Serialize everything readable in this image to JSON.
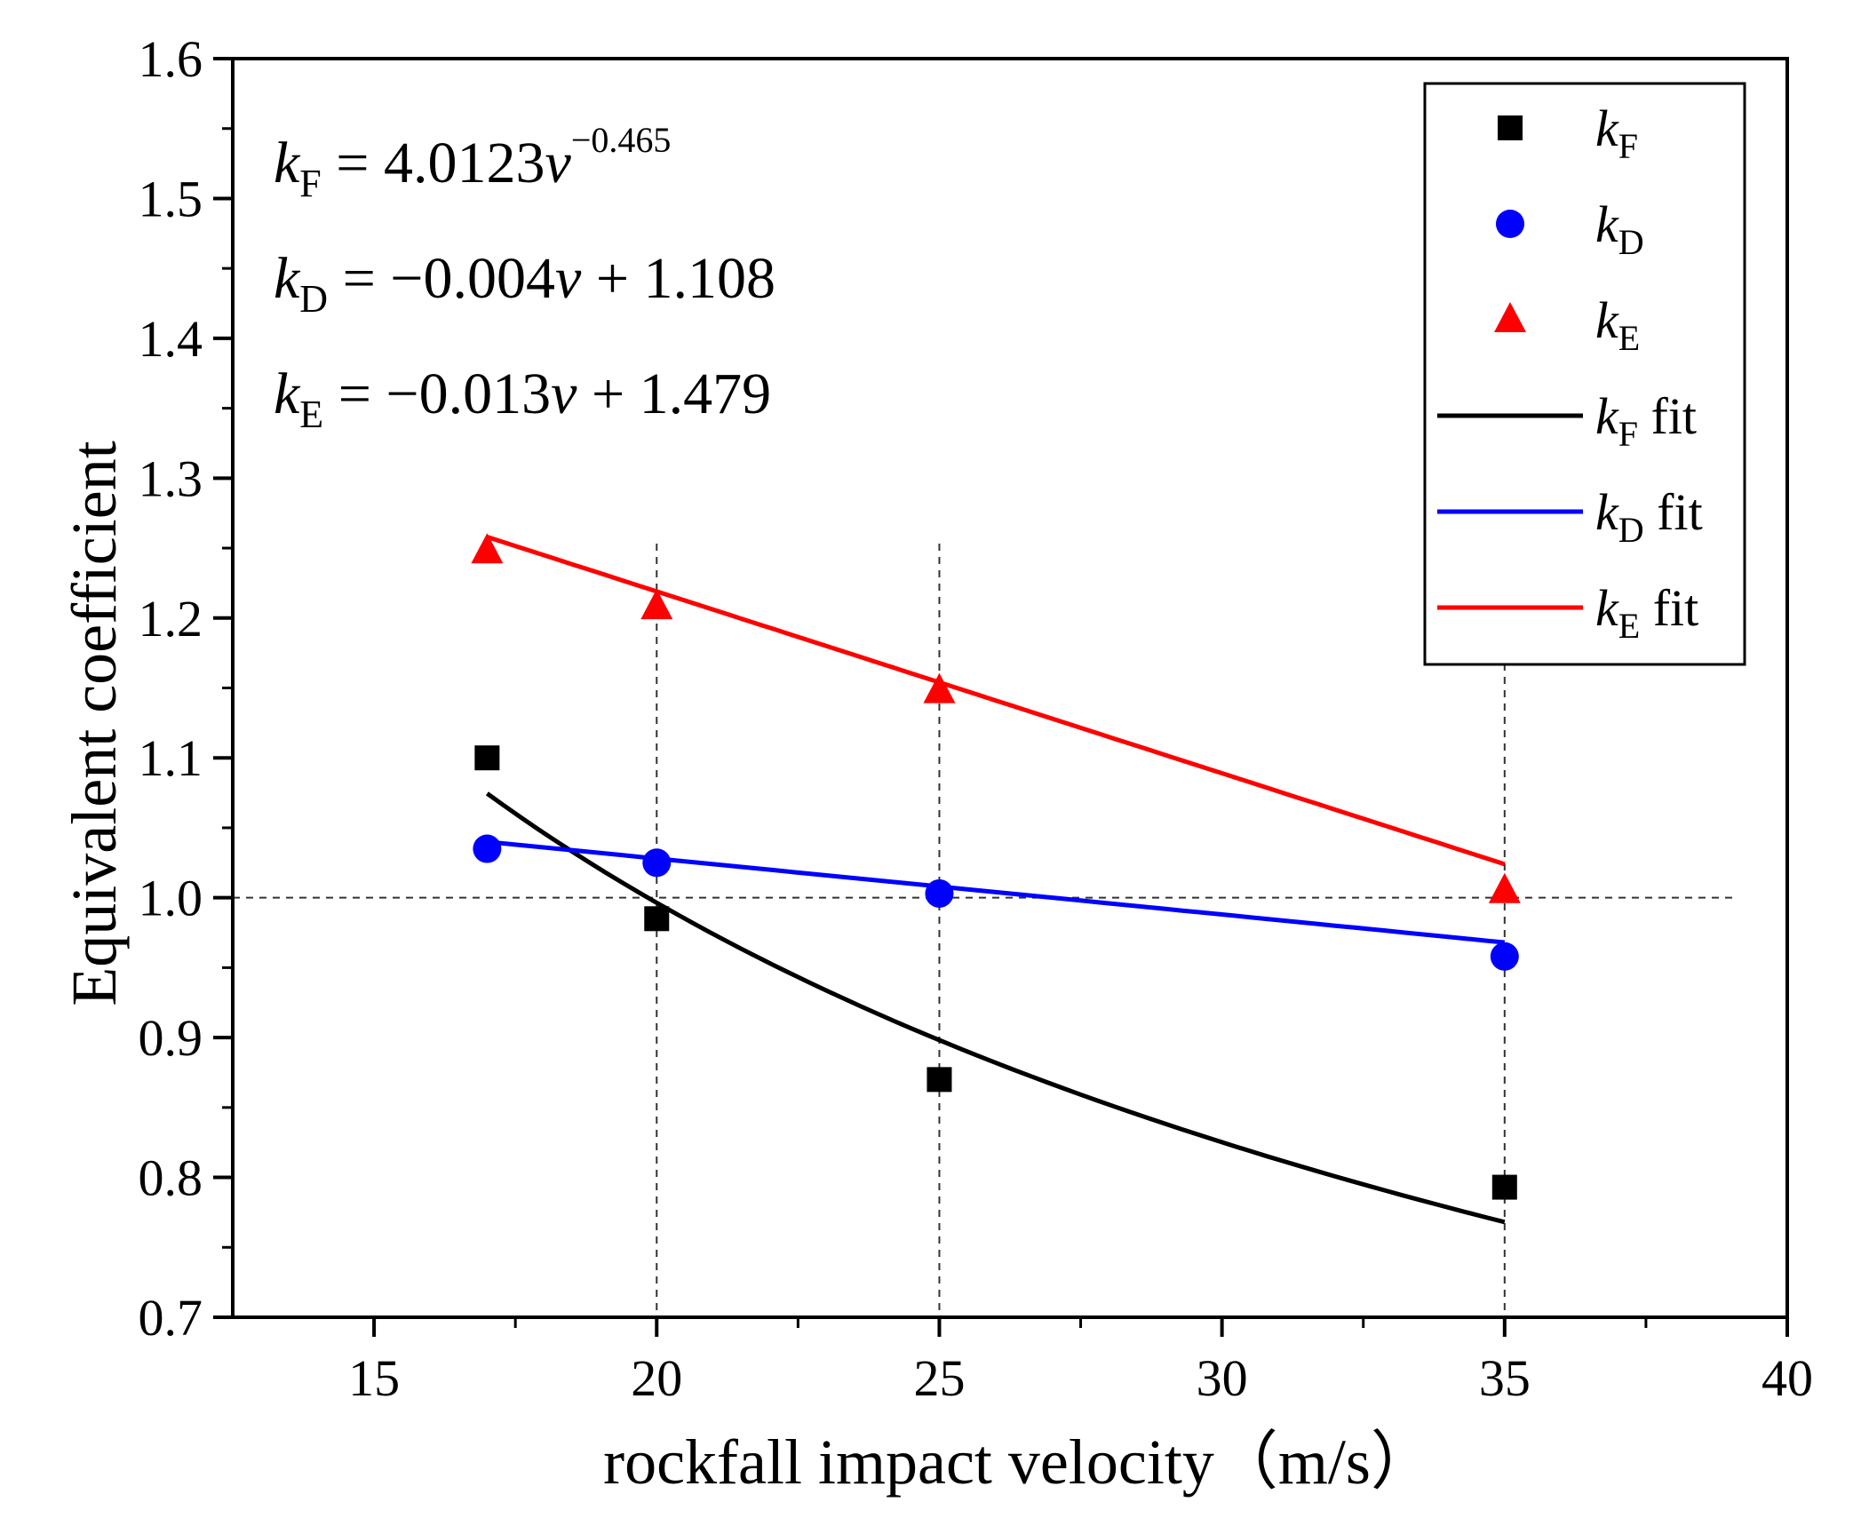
{
  "chart_data": {
    "type": "scatter",
    "xlabel": "rockfall impact velocity（m/s）",
    "ylabel": "Equivalent coefficient",
    "xlim": [
      12.5,
      40
    ],
    "ylim": [
      0.7,
      1.6
    ],
    "x_ticks": [
      "15",
      "20",
      "25",
      "30",
      "35",
      "40"
    ],
    "y_ticks": [
      "0.7",
      "0.8",
      "0.9",
      "1.0",
      "1.1",
      "1.2",
      "1.3",
      "1.4",
      "1.5",
      "1.6"
    ],
    "reference_lines": {
      "horizontal_y": 1.0,
      "vertical_x": [
        20,
        25,
        35
      ]
    },
    "grid": false,
    "legend_position": "top-right",
    "x": [
      17,
      20,
      25,
      35
    ],
    "series": [
      {
        "name": "kF",
        "name_base": "k",
        "name_sub": "F",
        "marker": "square",
        "color": "#000000",
        "values": [
          1.1,
          0.985,
          0.87,
          0.793
        ]
      },
      {
        "name": "kD",
        "name_base": "k",
        "name_sub": "D",
        "marker": "circle",
        "color": "#0000ff",
        "values": [
          1.035,
          1.025,
          1.003,
          0.958
        ]
      },
      {
        "name": "kE",
        "name_base": "k",
        "name_sub": "E",
        "marker": "triangle",
        "color": "#ff0000",
        "values": [
          1.248,
          1.208,
          1.148,
          1.005
        ]
      }
    ],
    "fits": [
      {
        "name": "kF fit",
        "name_base": "k",
        "name_sub": "F",
        "name_suffix": " fit",
        "color": "#000000",
        "form": "power",
        "coef": 4.0123,
        "exponent": -0.465,
        "x_range": [
          17,
          35
        ]
      },
      {
        "name": "kD fit",
        "name_base": "k",
        "name_sub": "D",
        "name_suffix": " fit",
        "color": "#0000ff",
        "form": "linear",
        "slope": -0.004,
        "intercept": 1.108,
        "x_range": [
          17,
          35
        ]
      },
      {
        "name": "kE fit",
        "name_base": "k",
        "name_sub": "E",
        "name_suffix": " fit",
        "color": "#ff0000",
        "form": "linear",
        "slope": -0.013,
        "intercept": 1.479,
        "x_range": [
          17,
          35
        ]
      }
    ],
    "equations": [
      {
        "lhs_base": "k",
        "lhs_sub": "F",
        "rhs": "= 4.0123",
        "var": "v",
        "sup": "−0.465",
        "tail": ""
      },
      {
        "lhs_base": "k",
        "lhs_sub": "D",
        "rhs": "= −0.004",
        "var": "v",
        "sup": "",
        "tail": " + 1.108"
      },
      {
        "lhs_base": "k",
        "lhs_sub": "E",
        "rhs": "= −0.013",
        "var": "v",
        "sup": "",
        "tail": " + 1.479"
      }
    ]
  }
}
